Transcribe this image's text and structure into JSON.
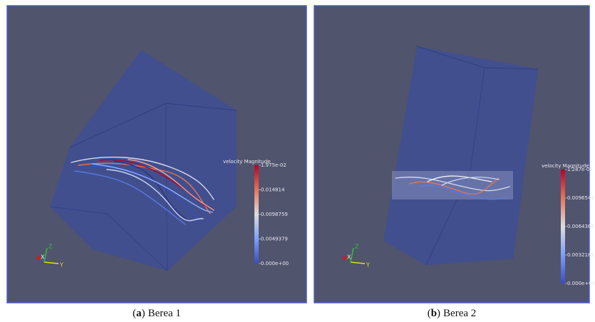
{
  "figure": {
    "panels": [
      {
        "open": "(",
        "label": "a",
        "close": ")",
        "caption": "Berea 1",
        "legend_title": "velocity Magnitude",
        "legend_labels": [
          "1.975e-02",
          "0.014814",
          "0.0098759",
          "0.0049379",
          "0.000e+00"
        ],
        "axes": [
          "X",
          "Y",
          "Z"
        ]
      },
      {
        "open": "(",
        "label": "b",
        "close": ")",
        "caption": "Berea 2",
        "legend_title": "velocity Magnitude",
        "legend_labels": [
          "1.287e-02",
          "0.0096549",
          "0.0064366",
          "0.0032183",
          "0.000e+00"
        ],
        "axes": [
          "X",
          "Y",
          "Z"
        ]
      }
    ]
  }
}
